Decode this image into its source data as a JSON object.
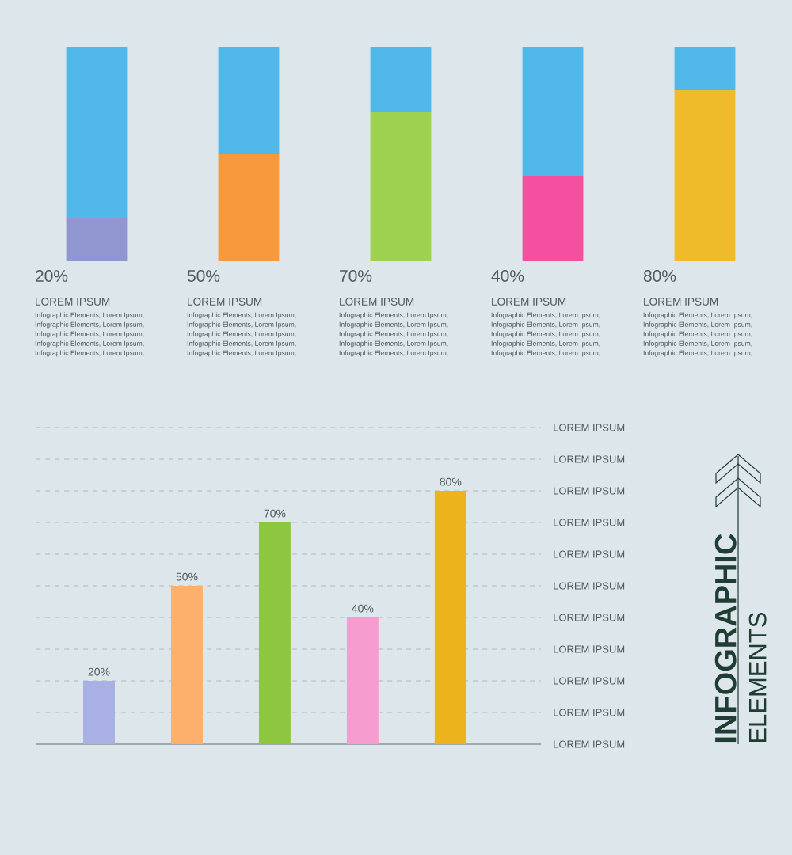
{
  "chart_data": [
    {
      "type": "bar",
      "stacked": true,
      "ylim": [
        0,
        100
      ],
      "tick_labels": "x",
      "categories": [
        "LOREM IPSUM",
        "LOREM IPSUM",
        "LOREM IPSUM",
        "LOREM IPSUM",
        "LOREM IPSUM"
      ],
      "series": [
        {
          "values": [
            20,
            50,
            70,
            40,
            80
          ],
          "colors": [
            "#9097d0",
            "#f89a3c",
            "#9dd14f",
            "#f5509f",
            "#f0bb2a"
          ],
          "value_labels": [
            "20%",
            "50%",
            "70%",
            "40%",
            "80%"
          ]
        },
        {
          "values": [
            80,
            50,
            30,
            60,
            20
          ],
          "color": "#52b8ea"
        }
      ],
      "annotations": [
        "Infographic Elements, Lorem  Ipsum,",
        "Infographic Elements, Lorem  Ipsum,",
        "Infographic Elements, Lorem  Ipsum,",
        "Infographic Elements, Lorem  Ipsum,",
        "Infographic Elements, Lorem  Ipsum,",
        "Infographic Elements, Lorem  Ipsum,",
        "Infographic Elements, Lorem  Ipsum,",
        "Infographic Elements, Lorem  Ipsum,",
        "Infographic Elements, Lorem  Ipsum,",
        "Infographic Elements, Lorem  Ipsum,",
        "Infographic Elements, Lorem  Ipsum,",
        "Infographic Elements, Lorem  Ipsum,",
        "Infographic Elements, Lorem  Ipsum,",
        "Infographic Elements, Lorem  Ipsum,",
        "Infographic Elements, Lorem  Ipsum,",
        "Infographic Elements, Lorem  Ipsum,",
        "Infographic Elements, Lorem  Ipsum,",
        "Infographic Elements, Lorem  Ipsum,",
        "Infographic Elements, Lorem  Ipsum,",
        "Infographic Elements, Lorem  Ipsum,",
        "Infographic Elements, Lorem  Ipsum,",
        "Infographic Elements, Lorem  Ipsum,",
        "Infographic Elements, Lorem  Ipsum,",
        "Infographic Elements, Lorem  Ipsum,",
        "Infographic Elements, Lorem  Ipsum,"
      ]
    },
    {
      "type": "bar",
      "categories": [
        null,
        null,
        null,
        null,
        null
      ],
      "values": [
        20,
        50,
        70,
        40,
        80
      ],
      "colors": [
        "#a9b0e3",
        "#fdb06b",
        "#8dc63f",
        "#f79ccf",
        "#ecb31c"
      ],
      "value_labels": [
        "20%",
        "50%",
        "70%",
        "40%",
        "80%"
      ],
      "ylim": [
        0,
        100
      ],
      "ref_lines": [
        {
          "axis": "y",
          "value": 0,
          "label": "LOREM IPSUM",
          "color": "#6b6b6b",
          "line_style": "solid"
        },
        {
          "axis": "y",
          "value": 10,
          "label": "LOREM IPSUM",
          "color": "#b4b8ba",
          "line_style": "dashed"
        },
        {
          "axis": "y",
          "value": 20,
          "label": "LOREM IPSUM",
          "color": "#b4b8ba",
          "line_style": "dashed"
        },
        {
          "axis": "y",
          "value": 30,
          "label": "LOREM IPSUM",
          "color": "#b4b8ba",
          "line_style": "dashed"
        },
        {
          "axis": "y",
          "value": 40,
          "label": "LOREM IPSUM",
          "color": "#b4b8ba",
          "line_style": "dashed"
        },
        {
          "axis": "y",
          "value": 50,
          "label": "LOREM IPSUM",
          "color": "#b4b8ba",
          "line_style": "dashed"
        },
        {
          "axis": "y",
          "value": 60,
          "label": "LOREM IPSUM",
          "color": "#b4b8ba",
          "line_style": "dashed"
        },
        {
          "axis": "y",
          "value": 70,
          "label": "LOREM IPSUM",
          "color": "#b4b8ba",
          "line_style": "dashed"
        },
        {
          "axis": "y",
          "value": 80,
          "label": "LOREM IPSUM",
          "color": "#b4b8ba",
          "line_style": "dashed"
        },
        {
          "axis": "y",
          "value": 90,
          "label": "LOREM IPSUM",
          "color": "#b4b8ba",
          "line_style": "dashed"
        },
        {
          "axis": "y",
          "value": 100,
          "label": "LOREM IPSUM",
          "color": "#b4b8ba",
          "line_style": "dashed"
        }
      ]
    },
    {
      "type": "other",
      "title": "INFOGRAPHIC",
      "subtitle": "ELEMENTS"
    }
  ]
}
